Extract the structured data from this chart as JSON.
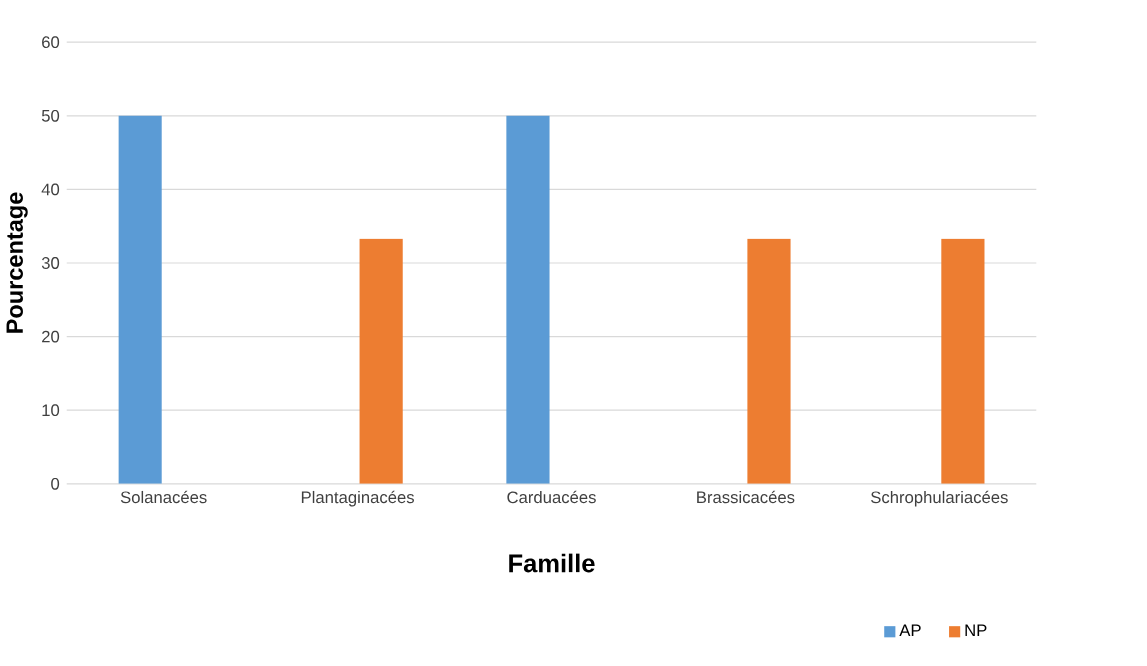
{
  "chart_data": {
    "type": "bar",
    "xlabel": "Famille",
    "ylabel": "Pourcentage",
    "categories": [
      "Solanacées",
      "Plantaginacées",
      "Carduacées",
      "Brassicacées",
      "Schrophulariacées"
    ],
    "series": [
      {
        "name": "AP",
        "color": "#5b9bd5",
        "values": [
          50,
          0,
          50,
          0,
          0
        ]
      },
      {
        "name": "NP",
        "color": "#ed7d31",
        "values": [
          0,
          33.3,
          0,
          33.3,
          33.3
        ]
      }
    ],
    "ylim": [
      0,
      60
    ],
    "yticks": [
      0,
      10,
      20,
      30,
      40,
      50,
      60
    ],
    "grid": "y",
    "legend": "bottom right"
  }
}
